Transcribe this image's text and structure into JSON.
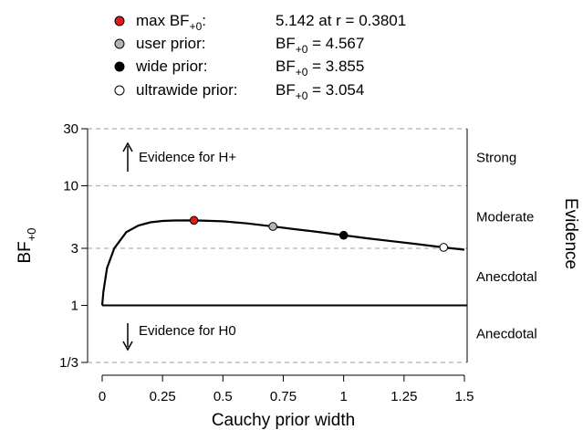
{
  "chart_data": {
    "type": "line",
    "xlabel": "Cauchy prior width",
    "ylabel": "BF",
    "ylabel_sub": "+0",
    "right_label": "Evidence",
    "x_ticks": [
      {
        "value": 0,
        "label": "0"
      },
      {
        "value": 0.25,
        "label": "0.25"
      },
      {
        "value": 0.5,
        "label": "0.5"
      },
      {
        "value": 0.75,
        "label": "0.75"
      },
      {
        "value": 1,
        "label": "1"
      },
      {
        "value": 1.25,
        "label": "1.25"
      },
      {
        "value": 1.5,
        "label": "1.5"
      }
    ],
    "y_scale": "log",
    "ylim": [
      0.3333,
      30
    ],
    "xlim": [
      0,
      1.5
    ],
    "y_ticks": [
      {
        "value": 0.3333,
        "label": "1/3"
      },
      {
        "value": 1,
        "label": "1"
      },
      {
        "value": 3,
        "label": "3"
      },
      {
        "value": 10,
        "label": "10"
      },
      {
        "value": 30,
        "label": "30"
      }
    ],
    "dashed_gridlines": [
      0.3333,
      3,
      10,
      30
    ],
    "reference_line": 1,
    "series": [
      {
        "x": [
          0.0,
          0.005,
          0.02,
          0.05,
          0.1,
          0.15,
          0.2,
          0.25,
          0.3,
          0.38,
          0.5,
          0.6,
          0.7071,
          0.8,
          0.9,
          1.0,
          1.1,
          1.2,
          1.3,
          1.4142,
          1.5
        ],
        "y": [
          1.0,
          1.3,
          2.05,
          3.0,
          4.1,
          4.65,
          4.95,
          5.08,
          5.13,
          5.142,
          5.05,
          4.85,
          4.567,
          4.33,
          4.1,
          3.855,
          3.63,
          3.44,
          3.26,
          3.054,
          2.92
        ]
      }
    ],
    "points": [
      {
        "name": "max",
        "x": 0.3801,
        "y": 5.142,
        "color": "#e31a1c"
      },
      {
        "name": "user",
        "x": 0.7071,
        "y": 4.567,
        "color": "#b5b5b5"
      },
      {
        "name": "wide",
        "x": 1.0,
        "y": 3.855,
        "color": "#000000"
      },
      {
        "name": "ultrawide",
        "x": 1.4142,
        "y": 3.054,
        "color": "#ffffff"
      }
    ],
    "legend": [
      {
        "marker": "max",
        "label": "max BF",
        "sub": "+0",
        "label_suffix": ":",
        "prefix": "",
        "prefix_sub": "",
        "value": "5.142 at r = 0.3801"
      },
      {
        "marker": "user",
        "label": "user prior:",
        "sub": "",
        "label_suffix": "",
        "prefix": "BF",
        "prefix_sub": "+0",
        "value": " = 4.567"
      },
      {
        "marker": "wide",
        "label": "wide prior:",
        "sub": "",
        "label_suffix": "",
        "prefix": "BF",
        "prefix_sub": "+0",
        "value": " = 3.855"
      },
      {
        "marker": "ultrawide",
        "label": "ultrawide prior:",
        "sub": "",
        "label_suffix": "",
        "prefix": "BF",
        "prefix_sub": "+0",
        "value": " = 3.054"
      }
    ],
    "annotations": {
      "h_plus": "Evidence for H+",
      "h_zero": "Evidence for H0"
    },
    "evidence_categories": [
      {
        "label": "Strong",
        "y": 17.3
      },
      {
        "label": "Moderate",
        "y": 5.477
      },
      {
        "label": "Anecdotal",
        "y": 1.732
      },
      {
        "label": "Anecdotal",
        "y": 0.5774
      }
    ]
  }
}
